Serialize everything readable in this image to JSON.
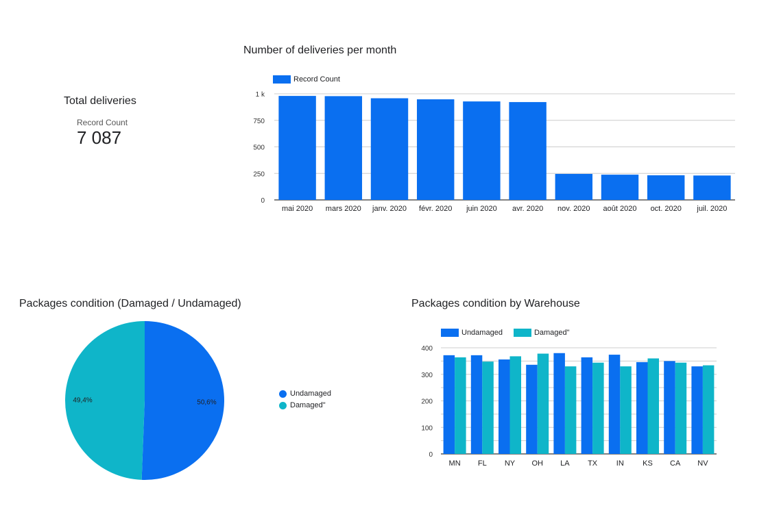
{
  "colors": {
    "primary": "#0a6ff0",
    "secondary": "#0fb5c9",
    "grid": "#cccccc",
    "axis": "#000000"
  },
  "scorecard": {
    "title": "Total deliveries",
    "metric_label": "Record Count",
    "value": "7 087"
  },
  "chart_data": [
    {
      "id": "deliveries",
      "type": "bar",
      "title": "Number of deliveries per month",
      "legend": [
        "Record Count"
      ],
      "categories": [
        "mai 2020",
        "mars 2020",
        "janv. 2020",
        "févr. 2020",
        "juin 2020",
        "avr. 2020",
        "nov. 2020",
        "août 2020",
        "oct. 2020",
        "juil. 2020"
      ],
      "values": [
        980,
        978,
        958,
        948,
        928,
        922,
        245,
        238,
        232,
        230
      ],
      "ylim": [
        0,
        1000
      ],
      "yticks": [
        0,
        250,
        500,
        750,
        1000
      ],
      "ytick_labels": [
        "0",
        "250",
        "500",
        "750",
        "1 k"
      ],
      "grid": true,
      "legend_position": "top-left"
    },
    {
      "id": "condition",
      "type": "pie",
      "title": "Packages condition (Damaged / Undamaged)",
      "slices": [
        {
          "name": "Undamaged",
          "value": 50.6,
          "label": "50,6%"
        },
        {
          "name": "Damaged\"",
          "value": 49.4,
          "label": "49,4%"
        }
      ],
      "legend_position": "right"
    },
    {
      "id": "warehouse",
      "type": "bar",
      "title": "Packages condition by Warehouse",
      "categories": [
        "MN",
        "FL",
        "NY",
        "OH",
        "LA",
        "TX",
        "IN",
        "KS",
        "CA",
        "NV"
      ],
      "series": [
        {
          "name": "Undamaged",
          "values": [
            372,
            372,
            356,
            336,
            380,
            364,
            374,
            346,
            350,
            330
          ]
        },
        {
          "name": "Damaged\"",
          "values": [
            364,
            348,
            368,
            378,
            330,
            344,
            330,
            360,
            344,
            334
          ]
        }
      ],
      "ylim": [
        0,
        400
      ],
      "yticks": [
        0,
        100,
        200,
        300,
        400
      ],
      "ytick_labels": [
        "0",
        "100",
        "200",
        "300",
        "400"
      ],
      "grid": true,
      "legend_position": "top-left"
    }
  ]
}
